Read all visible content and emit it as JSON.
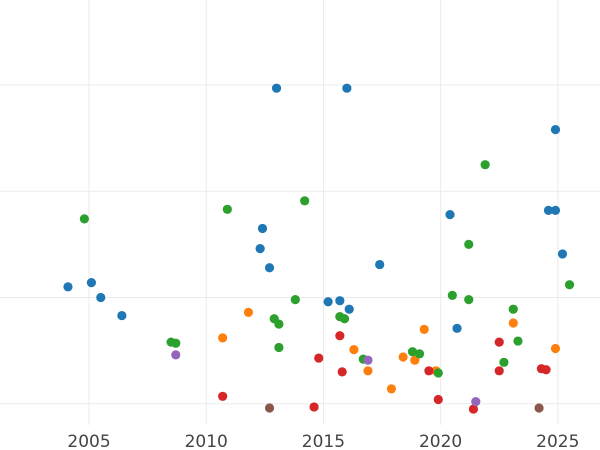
{
  "chart_data": {
    "type": "scatter",
    "title": "",
    "xlabel": "",
    "ylabel": "",
    "xlim": [
      2001.2,
      2026.8
    ],
    "ylim": [
      -0.2,
      3.8
    ],
    "x_ticks": [
      {
        "value": 2005,
        "label": "2005"
      },
      {
        "value": 2010,
        "label": "2010"
      },
      {
        "value": 2015,
        "label": "2015"
      },
      {
        "value": 2020,
        "label": "2020"
      },
      {
        "value": 2025,
        "label": "2025"
      }
    ],
    "y_ticks": [
      0,
      1,
      2,
      3
    ],
    "grid": true,
    "legend": "none",
    "series": [
      {
        "color": "#1f77b4",
        "points": [
          {
            "x": 2004.1,
            "y": 1.1
          },
          {
            "x": 2005.1,
            "y": 1.14
          },
          {
            "x": 2005.5,
            "y": 1.0
          },
          {
            "x": 2006.4,
            "y": 0.83
          },
          {
            "x": 2012.3,
            "y": 1.46
          },
          {
            "x": 2012.4,
            "y": 1.65
          },
          {
            "x": 2012.7,
            "y": 1.28
          },
          {
            "x": 2013.0,
            "y": 2.97
          },
          {
            "x": 2015.2,
            "y": 0.96
          },
          {
            "x": 2015.7,
            "y": 0.97
          },
          {
            "x": 2016.0,
            "y": 2.97
          },
          {
            "x": 2016.1,
            "y": 0.89
          },
          {
            "x": 2017.4,
            "y": 1.31
          },
          {
            "x": 2020.4,
            "y": 1.78
          },
          {
            "x": 2020.7,
            "y": 0.71
          },
          {
            "x": 2024.6,
            "y": 1.82
          },
          {
            "x": 2024.9,
            "y": 1.82
          },
          {
            "x": 2024.9,
            "y": 2.58
          },
          {
            "x": 2025.2,
            "y": 1.41
          }
        ]
      },
      {
        "color": "#ff7f0e",
        "points": [
          {
            "x": 2010.7,
            "y": 0.62
          },
          {
            "x": 2011.8,
            "y": 0.86
          },
          {
            "x": 2016.3,
            "y": 0.51
          },
          {
            "x": 2016.9,
            "y": 0.31
          },
          {
            "x": 2017.9,
            "y": 0.14
          },
          {
            "x": 2018.4,
            "y": 0.44
          },
          {
            "x": 2018.9,
            "y": 0.41
          },
          {
            "x": 2019.3,
            "y": 0.7
          },
          {
            "x": 2019.8,
            "y": 0.31
          },
          {
            "x": 2023.1,
            "y": 0.76
          },
          {
            "x": 2024.9,
            "y": 0.52
          }
        ]
      },
      {
        "color": "#2ca02c",
        "points": [
          {
            "x": 2004.8,
            "y": 1.74
          },
          {
            "x": 2008.5,
            "y": 0.58
          },
          {
            "x": 2008.7,
            "y": 0.57
          },
          {
            "x": 2010.9,
            "y": 1.83
          },
          {
            "x": 2012.9,
            "y": 0.8
          },
          {
            "x": 2013.1,
            "y": 0.75
          },
          {
            "x": 2013.1,
            "y": 0.53
          },
          {
            "x": 2013.8,
            "y": 0.98
          },
          {
            "x": 2014.2,
            "y": 1.91
          },
          {
            "x": 2015.7,
            "y": 0.82
          },
          {
            "x": 2015.9,
            "y": 0.8
          },
          {
            "x": 2016.7,
            "y": 0.42
          },
          {
            "x": 2018.8,
            "y": 0.49
          },
          {
            "x": 2019.1,
            "y": 0.47
          },
          {
            "x": 2019.9,
            "y": 0.29
          },
          {
            "x": 2020.5,
            "y": 1.02
          },
          {
            "x": 2021.2,
            "y": 0.98
          },
          {
            "x": 2021.2,
            "y": 1.5
          },
          {
            "x": 2021.9,
            "y": 2.25
          },
          {
            "x": 2022.7,
            "y": 0.39
          },
          {
            "x": 2023.1,
            "y": 0.89
          },
          {
            "x": 2023.3,
            "y": 0.59
          },
          {
            "x": 2025.5,
            "y": 1.12
          }
        ]
      },
      {
        "color": "#d62728",
        "points": [
          {
            "x": 2010.7,
            "y": 0.07
          },
          {
            "x": 2014.6,
            "y": -0.03
          },
          {
            "x": 2014.8,
            "y": 0.43
          },
          {
            "x": 2015.7,
            "y": 0.64
          },
          {
            "x": 2015.8,
            "y": 0.3
          },
          {
            "x": 2019.5,
            "y": 0.31
          },
          {
            "x": 2019.9,
            "y": 0.04
          },
          {
            "x": 2021.4,
            "y": -0.05
          },
          {
            "x": 2022.5,
            "y": 0.58
          },
          {
            "x": 2022.5,
            "y": 0.31
          },
          {
            "x": 2024.3,
            "y": 0.33
          },
          {
            "x": 2024.5,
            "y": 0.32
          }
        ]
      },
      {
        "color": "#9467bd",
        "points": [
          {
            "x": 2008.7,
            "y": 0.46
          },
          {
            "x": 2016.9,
            "y": 0.41
          },
          {
            "x": 2021.5,
            "y": 0.02
          }
        ]
      },
      {
        "color": "#8c564b",
        "points": [
          {
            "x": 2012.7,
            "y": -0.04
          },
          {
            "x": 2024.2,
            "y": -0.04
          }
        ]
      }
    ]
  }
}
